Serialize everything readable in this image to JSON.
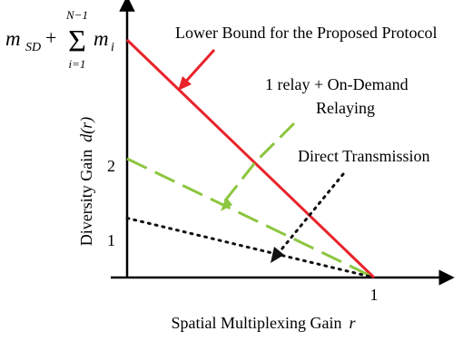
{
  "chart_data": {
    "type": "line",
    "ylabel_prefix": "Diversity Gain",
    "ylabel_var": "d(r)",
    "xlabel_prefix": "Spatial Multiplexing Gain",
    "xlabel_var": "r",
    "x_ticks": [
      {
        "value": 1,
        "label": "1"
      }
    ],
    "y_ticks": [
      {
        "value": 1,
        "label": "1"
      },
      {
        "value": 2,
        "label": "2"
      }
    ],
    "y_top_label": {
      "value": 4,
      "term1_base": "m",
      "term1_sub": "SD",
      "plus": "+",
      "sum_symbol": "Σ",
      "sum_upper": "N−1",
      "sum_lower": "i=1",
      "term2_base": "m",
      "term2_sub": "i"
    },
    "xlim": [
      0,
      1.18
    ],
    "ylim": [
      0,
      4.6
    ],
    "series": [
      {
        "name": "Lower Bound for the Proposed Protocol",
        "color": "#e8232a",
        "dash": "solid",
        "points": [
          [
            0,
            4
          ],
          [
            1,
            0
          ]
        ]
      },
      {
        "name": "1 relay + On-Demand Relaying",
        "color": "#8cc63f",
        "dash": "dashed",
        "points": [
          [
            0,
            2
          ],
          [
            1,
            0
          ]
        ]
      },
      {
        "name": "Direct Transmission",
        "color": "#111111",
        "dash": "dotted",
        "points": [
          [
            0,
            1
          ],
          [
            1,
            0
          ]
        ]
      }
    ],
    "annotations": [
      {
        "text": "Lower Bound for the Proposed Protocol",
        "series": 0
      },
      {
        "text": "1 relay + On-Demand",
        "text2": "Relaying",
        "series": 1
      },
      {
        "text": "Direct Transmission",
        "series": 2
      }
    ]
  }
}
